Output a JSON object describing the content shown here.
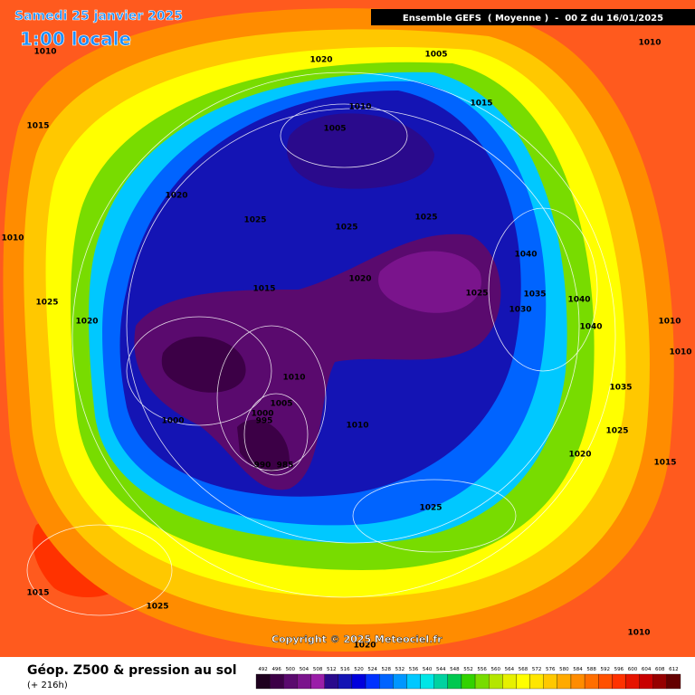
{
  "header": {
    "date": "Samedi 25 janvier 2025",
    "time": "1:00 locale",
    "model": "Ensemble GEFS  ( Moyenne )  -  00 Z du 16/01/2025"
  },
  "copyright": "Copyright © 2025 Meteociel.fr",
  "footer": {
    "title": "Géop. Z500 & pression au sol",
    "lead": "(+ 216h)"
  },
  "legend": {
    "values": [
      492,
      496,
      500,
      504,
      508,
      512,
      516,
      520,
      524,
      528,
      532,
      536,
      540,
      544,
      548,
      552,
      556,
      560,
      564,
      568,
      572,
      576,
      580,
      584,
      588,
      592,
      596,
      600,
      604,
      608,
      612
    ],
    "colors": [
      "#1e001e",
      "#3c0046",
      "#5a0a6e",
      "#7a148c",
      "#9a1ea8",
      "#2a0a8c",
      "#1414b4",
      "#0000dc",
      "#0032ff",
      "#0064ff",
      "#0096ff",
      "#00c8ff",
      "#00e6e6",
      "#00d2a0",
      "#00c850",
      "#32d200",
      "#78dc00",
      "#b4e600",
      "#e6f000",
      "#ffff00",
      "#ffe600",
      "#ffc800",
      "#ffaa00",
      "#ff8c00",
      "#ff6e00",
      "#ff5000",
      "#ff3200",
      "#e61400",
      "#c80000",
      "#960000",
      "#640000"
    ]
  },
  "isobar_labels": [
    "1010",
    "1020",
    "1005",
    "1010",
    "1015",
    "1010",
    "1015",
    "1005",
    "1020",
    "1025",
    "1025",
    "1025",
    "1010",
    "1040",
    "1015",
    "1020",
    "1025",
    "1035",
    "1040",
    "1025",
    "1030",
    "1020",
    "1040",
    "1010",
    "1010",
    "1010",
    "1005",
    "1000",
    "995",
    "1035",
    "1000",
    "1010",
    "1025",
    "1020",
    "1015",
    "990",
    "985",
    "1025",
    "1015",
    "1025",
    "1010",
    "1020"
  ]
}
